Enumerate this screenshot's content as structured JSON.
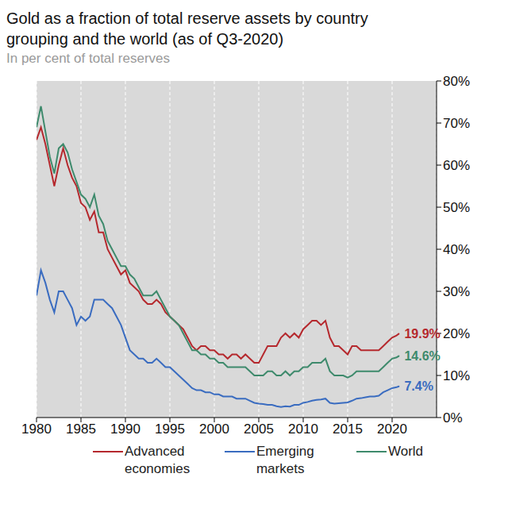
{
  "chart_data": {
    "type": "line",
    "title": "Gold as a fraction of total reserve assets by country grouping and the world (as of Q3-2020)",
    "subtitle": "In per cent of total reserves",
    "x": [
      1980,
      1980.5,
      1981,
      1981.5,
      1982,
      1982.5,
      1983,
      1983.5,
      1984,
      1984.5,
      1985,
      1985.5,
      1986,
      1986.5,
      1987,
      1987.5,
      1988,
      1988.5,
      1989,
      1989.5,
      1990,
      1990.5,
      1991,
      1991.5,
      1992,
      1992.5,
      1993,
      1993.5,
      1994,
      1994.5,
      1995,
      1995.5,
      1996,
      1996.5,
      1997,
      1997.5,
      1998,
      1998.5,
      1999,
      1999.5,
      2000,
      2000.5,
      2001,
      2001.5,
      2002,
      2002.5,
      2003,
      2003.5,
      2004,
      2004.5,
      2005,
      2005.5,
      2006,
      2006.5,
      2007,
      2007.5,
      2008,
      2008.5,
      2009,
      2009.5,
      2010,
      2010.5,
      2011,
      2011.5,
      2012,
      2012.5,
      2013,
      2013.5,
      2014,
      2014.5,
      2015,
      2015.5,
      2016,
      2016.5,
      2017,
      2017.5,
      2018,
      2018.5,
      2019,
      2019.5,
      2020,
      2020.5,
      2020.75
    ],
    "series": [
      {
        "name": "Advanced economies",
        "color": "#b5282d",
        "values": [
          66,
          69,
          65,
          60,
          55,
          60,
          64,
          60,
          57,
          55,
          51,
          50,
          47,
          49,
          44,
          44,
          40,
          38,
          36,
          34,
          35,
          32,
          31,
          30,
          28,
          27,
          27,
          28,
          27,
          25,
          24,
          23,
          22,
          21,
          19,
          17,
          16,
          17,
          17,
          16,
          16,
          15,
          15,
          14,
          15,
          15,
          14,
          15,
          14,
          13,
          13,
          15,
          17,
          17,
          17,
          19,
          20,
          19,
          20,
          19,
          21,
          22,
          23,
          23,
          22,
          23,
          19,
          17,
          17,
          16,
          15,
          17,
          17,
          16,
          16,
          16,
          16,
          16,
          17,
          18,
          19,
          19.5,
          19.9
        ]
      },
      {
        "name": "Emerging markets",
        "color": "#3a6cc0",
        "values": [
          29,
          35,
          32,
          28,
          25,
          30,
          30,
          28,
          26,
          22,
          24,
          23,
          24,
          28,
          28,
          28,
          27,
          26,
          24,
          22,
          19,
          16,
          15,
          14,
          14,
          13,
          13,
          14,
          13,
          12,
          12,
          11,
          10,
          9,
          8,
          7,
          6.5,
          6.5,
          6,
          6,
          5.5,
          5.5,
          5,
          5,
          5,
          4.5,
          4.5,
          4.5,
          4,
          3.5,
          3.3,
          3.2,
          3,
          3,
          2.7,
          2.5,
          2.7,
          2.6,
          3,
          3,
          3.5,
          3.7,
          4,
          4.2,
          4.3,
          4.5,
          3.5,
          3.3,
          3.4,
          3.5,
          3.6,
          4,
          4.5,
          4.6,
          4.8,
          5,
          5,
          5.2,
          6,
          6.5,
          7,
          7.2,
          7.4
        ]
      },
      {
        "name": "World",
        "color": "#3e8a6c",
        "values": [
          69,
          74,
          68,
          62,
          58,
          64,
          65,
          63,
          59,
          56,
          53,
          52,
          50,
          53,
          48,
          46,
          42,
          40,
          38,
          36,
          36,
          34,
          33,
          31,
          29,
          29,
          29,
          30,
          28,
          26,
          24,
          23,
          22,
          20,
          18,
          16,
          16,
          15,
          15,
          14,
          14,
          13,
          13,
          12,
          12,
          12,
          12,
          12,
          11,
          10,
          10,
          10,
          11,
          11,
          10,
          10,
          11,
          10,
          11,
          11,
          12,
          12,
          13,
          13,
          13,
          14,
          11,
          10,
          10,
          10,
          9.5,
          10,
          11,
          11,
          11,
          11,
          11,
          11,
          12,
          13,
          14,
          14.3,
          14.6
        ]
      }
    ],
    "annotations": [
      {
        "text": "19.9%",
        "series": "Advanced economies"
      },
      {
        "text": "14.6%",
        "series": "World"
      },
      {
        "text": "7.4%",
        "series": "Emerging markets"
      }
    ],
    "xlim": [
      1980,
      2025
    ],
    "xticks": [
      1980,
      1985,
      1990,
      1995,
      2000,
      2005,
      2010,
      2015,
      2020
    ],
    "ylim": [
      0,
      80
    ],
    "yticks": [
      {
        "value": 0,
        "label": "0%"
      },
      {
        "value": 10,
        "label": "10%"
      },
      {
        "value": 20,
        "label": "20%"
      },
      {
        "value": 30,
        "label": "30%"
      },
      {
        "value": 40,
        "label": "40%"
      },
      {
        "value": 50,
        "label": "50%"
      },
      {
        "value": 60,
        "label": "60%"
      },
      {
        "value": 70,
        "label": "70%"
      },
      {
        "value": 80,
        "label": "80%"
      }
    ],
    "grid": true,
    "legend": "bottom"
  }
}
